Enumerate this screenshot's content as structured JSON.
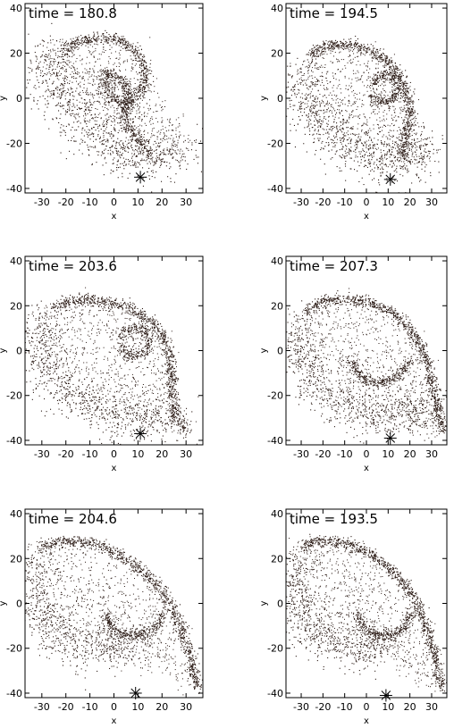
{
  "chart_data": [
    {
      "type": "scatter",
      "title": "time = 180.8",
      "xlabel": "x",
      "ylabel": "y",
      "xlim": [
        -37,
        37
      ],
      "ylim": [
        -42,
        42
      ],
      "xticks": [
        -30,
        -20,
        -10,
        0,
        10,
        20,
        30
      ],
      "yticks": [
        -40,
        -20,
        0,
        20,
        40
      ],
      "marker": {
        "x": 11,
        "y": -35,
        "symbol": "asterisk"
      },
      "grid": false,
      "point_color": "#2a1a14",
      "series": [
        {
          "values": [
            [
              -30,
              22
            ],
            [
              -28,
              15
            ],
            [
              -25,
              8
            ],
            [
              -22,
              2
            ],
            [
              -18,
              -5
            ],
            [
              -12,
              -12
            ],
            [
              -5,
              -18
            ],
            [
              2,
              -22
            ],
            [
              8,
              -26
            ],
            [
              14,
              -28
            ],
            [
              20,
              -26
            ],
            [
              25,
              -24
            ],
            [
              28,
              -22
            ],
            [
              30,
              -20
            ]
          ]
        },
        {
          "values": [
            [
              -22,
              20
            ],
            [
              -18,
              24
            ],
            [
              -12,
              26
            ],
            [
              -5,
              27
            ],
            [
              2,
              26
            ],
            [
              8,
              22
            ],
            [
              12,
              16
            ],
            [
              13,
              8
            ],
            [
              10,
              2
            ],
            [
              5,
              -2
            ],
            [
              1,
              -1
            ],
            [
              -2,
              4
            ],
            [
              -4,
              10
            ]
          ]
        },
        {
          "values": [
            [
              -5,
              12
            ],
            [
              0,
              10
            ],
            [
              5,
              6
            ],
            [
              6,
              0
            ],
            [
              4,
              -6
            ],
            [
              6,
              -12
            ],
            [
              10,
              -18
            ],
            [
              14,
              -24
            ]
          ]
        }
      ]
    },
    {
      "type": "scatter",
      "title": "time = 194.5",
      "xlabel": "x",
      "ylabel": "y",
      "xlim": [
        -37,
        37
      ],
      "ylim": [
        -42,
        42
      ],
      "xticks": [
        -30,
        -20,
        -10,
        0,
        10,
        20,
        30
      ],
      "yticks": [
        -40,
        -20,
        0,
        20,
        40
      ],
      "marker": {
        "x": 11,
        "y": -36,
        "symbol": "asterisk"
      },
      "grid": false,
      "point_color": "#2a1a14",
      "series": [
        {
          "values": [
            [
              -32,
              10
            ],
            [
              -30,
              2
            ],
            [
              -26,
              -6
            ],
            [
              -20,
              -12
            ],
            [
              -14,
              -18
            ],
            [
              -6,
              -22
            ],
            [
              2,
              -26
            ],
            [
              10,
              -28
            ],
            [
              18,
              -28
            ],
            [
              24,
              -26
            ],
            [
              28,
              -22
            ]
          ]
        },
        {
          "values": [
            [
              -26,
              18
            ],
            [
              -22,
              22
            ],
            [
              -15,
              24
            ],
            [
              -8,
              24
            ],
            [
              0,
              22
            ],
            [
              8,
              18
            ],
            [
              14,
              12
            ],
            [
              18,
              4
            ],
            [
              20,
              -6
            ],
            [
              18,
              -18
            ],
            [
              16,
              -26
            ]
          ]
        },
        {
          "values": [
            [
              2,
              6
            ],
            [
              6,
              10
            ],
            [
              12,
              10
            ],
            [
              15,
              5
            ],
            [
              12,
              0
            ],
            [
              6,
              -2
            ],
            [
              2,
              2
            ]
          ]
        }
      ]
    },
    {
      "type": "scatter",
      "title": "time = 203.6",
      "xlabel": "x",
      "ylabel": "y",
      "xlim": [
        -37,
        37
      ],
      "ylim": [
        -42,
        42
      ],
      "xticks": [
        -30,
        -20,
        -10,
        0,
        10,
        20,
        30
      ],
      "yticks": [
        -40,
        -20,
        0,
        20,
        40
      ],
      "marker": {
        "x": 11,
        "y": -37,
        "symbol": "asterisk"
      },
      "grid": false,
      "point_color": "#2a1a14",
      "series": [
        {
          "values": [
            [
              -33,
              14
            ],
            [
              -32,
              6
            ],
            [
              -30,
              -2
            ],
            [
              -27,
              -10
            ],
            [
              -22,
              -17
            ],
            [
              -15,
              -22
            ],
            [
              -7,
              -26
            ],
            [
              2,
              -30
            ],
            [
              10,
              -31
            ],
            [
              18,
              -30
            ],
            [
              24,
              -28
            ]
          ]
        },
        {
          "values": [
            [
              -26,
              18
            ],
            [
              -20,
              22
            ],
            [
              -12,
              23
            ],
            [
              -4,
              22
            ],
            [
              4,
              20
            ],
            [
              12,
              16
            ],
            [
              18,
              10
            ],
            [
              22,
              2
            ],
            [
              24,
              -8
            ],
            [
              24,
              -20
            ],
            [
              26,
              -30
            ],
            [
              30,
              -36
            ]
          ]
        },
        {
          "values": [
            [
              2,
              6
            ],
            [
              6,
              10
            ],
            [
              12,
              10
            ],
            [
              15,
              4
            ],
            [
              12,
              -1
            ],
            [
              6,
              -2
            ],
            [
              2,
              2
            ]
          ]
        }
      ]
    },
    {
      "type": "scatter",
      "title": "time = 207.3",
      "xlabel": "x",
      "ylabel": "y",
      "xlim": [
        -37,
        37
      ],
      "ylim": [
        -42,
        42
      ],
      "xticks": [
        -30,
        -20,
        -10,
        0,
        10,
        20,
        30
      ],
      "yticks": [
        -40,
        -20,
        0,
        20,
        40
      ],
      "marker": {
        "x": 11,
        "y": -39,
        "symbol": "asterisk"
      },
      "grid": false,
      "point_color": "#2a1a14",
      "series": [
        {
          "values": [
            [
              -34,
              10
            ],
            [
              -33,
              2
            ],
            [
              -30,
              -6
            ],
            [
              -25,
              -14
            ],
            [
              -18,
              -20
            ],
            [
              -10,
              -24
            ],
            [
              -2,
              -28
            ],
            [
              6,
              -30
            ],
            [
              14,
              -30
            ],
            [
              22,
              -28
            ],
            [
              28,
              -26
            ]
          ]
        },
        {
          "values": [
            [
              -28,
              18
            ],
            [
              -20,
              22
            ],
            [
              -10,
              23
            ],
            [
              0,
              22
            ],
            [
              10,
              18
            ],
            [
              18,
              12
            ],
            [
              24,
              4
            ],
            [
              28,
              -6
            ],
            [
              31,
              -18
            ],
            [
              33,
              -28
            ],
            [
              35,
              -36
            ]
          ]
        },
        {
          "values": [
            [
              -8,
              -4
            ],
            [
              -4,
              -10
            ],
            [
              2,
              -14
            ],
            [
              8,
              -14
            ],
            [
              16,
              -10
            ],
            [
              20,
              -4
            ]
          ]
        }
      ]
    },
    {
      "type": "scatter",
      "title": "time = 204.6",
      "xlabel": "x",
      "ylabel": "y",
      "xlim": [
        -37,
        37
      ],
      "ylim": [
        -42,
        42
      ],
      "xticks": [
        -30,
        -20,
        -10,
        0,
        10,
        20,
        30
      ],
      "yticks": [
        -40,
        -20,
        0,
        20,
        40
      ],
      "marker": {
        "x": 9,
        "y": -40,
        "symbol": "asterisk"
      },
      "grid": false,
      "point_color": "#2a1a14",
      "series": [
        {
          "values": [
            [
              -34,
              20
            ],
            [
              -34,
              10
            ],
            [
              -32,
              0
            ],
            [
              -30,
              -8
            ],
            [
              -26,
              -12
            ],
            [
              -20,
              -16
            ],
            [
              -12,
              -20
            ],
            [
              -4,
              -20
            ],
            [
              4,
              -18
            ],
            [
              10,
              -16
            ]
          ]
        },
        {
          "values": [
            [
              -30,
              26
            ],
            [
              -22,
              28
            ],
            [
              -14,
              28
            ],
            [
              -6,
              26
            ],
            [
              2,
              22
            ],
            [
              10,
              16
            ],
            [
              18,
              8
            ],
            [
              24,
              -2
            ],
            [
              28,
              -12
            ],
            [
              31,
              -22
            ],
            [
              33,
              -30
            ],
            [
              35,
              -38
            ]
          ]
        },
        {
          "values": [
            [
              -4,
              -4
            ],
            [
              -2,
              -10
            ],
            [
              4,
              -14
            ],
            [
              12,
              -14
            ],
            [
              18,
              -10
            ],
            [
              20,
              -4
            ]
          ]
        }
      ]
    },
    {
      "type": "scatter",
      "title": "time = 193.5",
      "xlabel": "x",
      "ylabel": "y",
      "xlim": [
        -37,
        37
      ],
      "ylim": [
        -42,
        42
      ],
      "xticks": [
        -30,
        -20,
        -10,
        0,
        10,
        20,
        30
      ],
      "yticks": [
        -40,
        -20,
        0,
        20,
        40
      ],
      "marker": {
        "x": 9,
        "y": -41,
        "symbol": "asterisk"
      },
      "grid": false,
      "point_color": "#2a1a14",
      "series": [
        {
          "values": [
            [
              -34,
              20
            ],
            [
              -34,
              10
            ],
            [
              -32,
              0
            ],
            [
              -30,
              -8
            ],
            [
              -26,
              -12
            ],
            [
              -20,
              -16
            ],
            [
              -12,
              -20
            ],
            [
              -4,
              -20
            ],
            [
              4,
              -18
            ],
            [
              10,
              -16
            ]
          ]
        },
        {
          "values": [
            [
              -30,
              26
            ],
            [
              -22,
              28
            ],
            [
              -14,
              28
            ],
            [
              -6,
              26
            ],
            [
              2,
              22
            ],
            [
              10,
              16
            ],
            [
              18,
              8
            ],
            [
              24,
              -2
            ],
            [
              28,
              -12
            ],
            [
              31,
              -22
            ],
            [
              33,
              -30
            ],
            [
              35,
              -38
            ]
          ]
        },
        {
          "values": [
            [
              -4,
              -4
            ],
            [
              -2,
              -10
            ],
            [
              4,
              -14
            ],
            [
              12,
              -14
            ],
            [
              18,
              -10
            ],
            [
              20,
              -4
            ]
          ]
        }
      ]
    }
  ]
}
